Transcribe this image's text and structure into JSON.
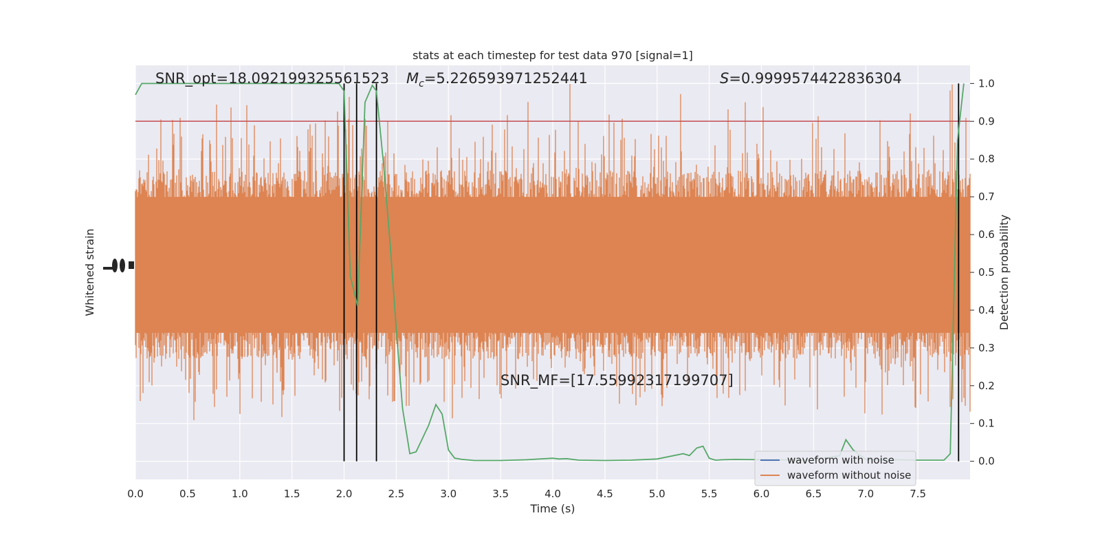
{
  "chart_data": {
    "type": "line",
    "title": "stats at each timestep for test data 970 [signal=1]",
    "xlabel": "Time (s)",
    "ylabel_left": "Whitened strain",
    "ylabel_right": "Detection probability",
    "xlim": [
      0.0,
      8.0
    ],
    "ylim_right": [
      -0.048,
      1.048
    ],
    "x_ticks": [
      "0.0",
      "0.5",
      "1.0",
      "1.5",
      "2.0",
      "2.5",
      "3.0",
      "3.5",
      "4.0",
      "4.5",
      "5.0",
      "5.5",
      "6.0",
      "6.5",
      "7.0",
      "7.5"
    ],
    "x_tick_values": [
      0,
      0.5,
      1,
      1.5,
      2,
      2.5,
      3,
      3.5,
      4,
      4.5,
      5,
      5.5,
      6,
      6.5,
      7,
      7.5
    ],
    "y_right_ticks": [
      "0.0",
      "0.1",
      "0.2",
      "0.3",
      "0.4",
      "0.5",
      "0.6",
      "0.7",
      "0.8",
      "0.9",
      "1.0"
    ],
    "y_right_tick_values": [
      0,
      0.1,
      0.2,
      0.3,
      0.4,
      0.5,
      0.6,
      0.7,
      0.8,
      0.9,
      1.0
    ],
    "grid": true,
    "legend_position": "lower-right",
    "annotations": {
      "snr_opt": "SNR_opt=18.092199325561523",
      "mc_symbol": "M",
      "mc_sub": "c",
      "mc_value": "=5.226593971252441",
      "s_symbol": "S",
      "s_value": "=0.9999574422836304",
      "snr_mf": "SNR_MF=[17.55992317199707]"
    },
    "threshold": 0.9,
    "vertical_lines": [
      2.0,
      2.12,
      2.31,
      7.89
    ],
    "series": [
      {
        "name": "waveform with noise",
        "color": "#4c72b0"
      },
      {
        "name": "waveform without noise",
        "color": "#dd8452"
      }
    ],
    "probability_series": {
      "color": "#55a868",
      "x": [
        0.0,
        0.06,
        0.5,
        1.0,
        1.5,
        1.95,
        2.0,
        2.06,
        2.13,
        2.2,
        2.27,
        2.31,
        2.38,
        2.44,
        2.5,
        2.56,
        2.63,
        2.69,
        2.75,
        2.81,
        2.88,
        2.94,
        3.0,
        3.06,
        3.13,
        3.25,
        3.5,
        3.75,
        4.0,
        4.06,
        4.13,
        4.25,
        4.5,
        4.75,
        5.0,
        5.25,
        5.31,
        5.38,
        5.44,
        5.5,
        5.56,
        5.63,
        5.75,
        6.0,
        6.5,
        6.75,
        6.81,
        6.88,
        7.0,
        7.25,
        7.5,
        7.75,
        7.81,
        7.88,
        7.94
      ],
      "y": [
        0.97,
        1.0,
        1.0,
        1.0,
        1.0,
        1.0,
        0.98,
        0.49,
        0.41,
        0.95,
        0.995,
        0.98,
        0.78,
        0.58,
        0.35,
        0.14,
        0.02,
        0.025,
        0.06,
        0.095,
        0.15,
        0.125,
        0.03,
        0.008,
        0.005,
        0.002,
        0.002,
        0.004,
        0.008,
        0.006,
        0.007,
        0.003,
        0.002,
        0.003,
        0.006,
        0.02,
        0.015,
        0.035,
        0.04,
        0.008,
        0.003,
        0.004,
        0.005,
        0.004,
        0.003,
        0.015,
        0.057,
        0.03,
        0.005,
        0.004,
        0.003,
        0.003,
        0.02,
        0.85,
        1.0
      ]
    },
    "noise_envelope": {
      "baseline": 0.2,
      "typical_top": 0.72,
      "typical_bottom": 0.32,
      "spike_top_max": 1.0,
      "spike_bottom_min": 0.1
    }
  }
}
